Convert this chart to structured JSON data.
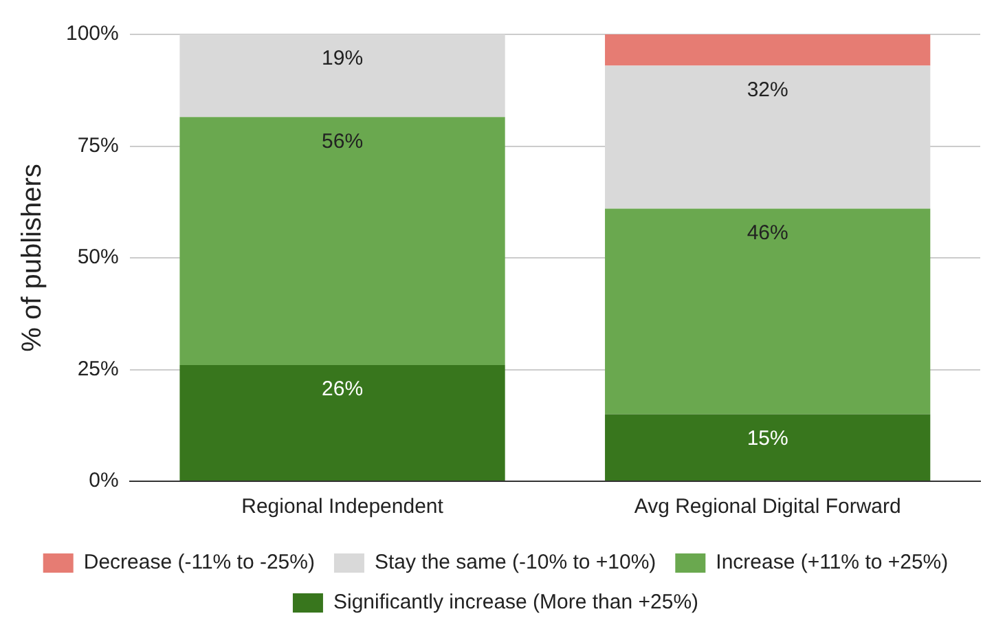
{
  "chart_data": {
    "type": "bar",
    "stacked": true,
    "ylabel": "% of publishers",
    "categories": [
      "Regional Independent",
      "Avg Regional Digital Forward"
    ],
    "series": [
      {
        "name": "Significantly increase (More than +25%)",
        "color": "#38761d",
        "values": [
          26,
          15
        ],
        "value_labels": [
          "26%",
          "15%"
        ]
      },
      {
        "name": "Increase (+11% to +25%)",
        "color": "#6aa84f",
        "values": [
          55.5,
          46
        ],
        "value_labels": [
          "56%",
          "46%"
        ]
      },
      {
        "name": "Stay the same (-10% to +10%)",
        "color": "#d9d9d9",
        "values": [
          18.5,
          32
        ],
        "value_labels": [
          "19%",
          "32%"
        ]
      },
      {
        "name": "Decrease (-11% to -25%)",
        "color": "#e67c73",
        "values": [
          null,
          7
        ],
        "value_labels": [
          null,
          null
        ]
      }
    ],
    "ylim": [
      0,
      100
    ],
    "yticks": [
      {
        "value": 0,
        "label": "0%"
      },
      {
        "value": 25,
        "label": "25%"
      },
      {
        "value": 50,
        "label": "50%"
      },
      {
        "value": 75,
        "label": "75%"
      },
      {
        "value": 100,
        "label": "100%"
      }
    ],
    "grid": "y",
    "legend": "bottom"
  }
}
